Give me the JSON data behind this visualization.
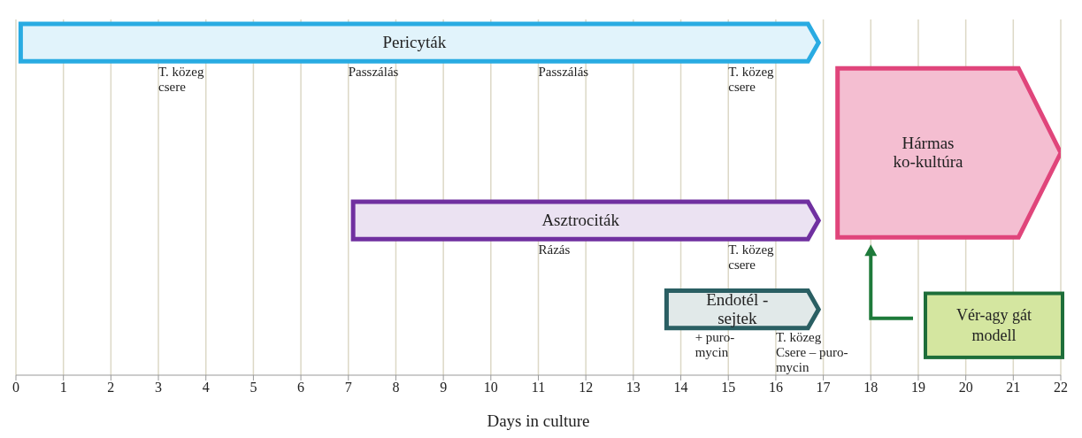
{
  "chart_data": {
    "type": "bar",
    "orientation": "horizontal",
    "categories": [
      "Pericyták",
      "Hármas ko-kultúra",
      "Asztrociták",
      "Endotél - sejtek"
    ],
    "base": [
      0.1,
      17.3,
      7.1,
      13.7
    ],
    "values": [
      16.8,
      4.7,
      9.8,
      3.2
    ],
    "colors": [
      "#29abe2",
      "#e0457b",
      "#7030a0",
      "#2a5f63"
    ],
    "xlabel": "Days in culture",
    "xlim": [
      0,
      22
    ],
    "xticks": [
      0,
      1,
      2,
      3,
      4,
      5,
      6,
      7,
      8,
      9,
      10,
      11,
      12,
      13,
      14,
      15,
      16,
      17,
      18,
      19,
      20,
      21,
      22
    ],
    "grid": "x",
    "tick_labels": "x",
    "annotations": [
      {
        "text": "T. közeg\ncsere",
        "x": 3,
        "y": "Pericyták"
      },
      {
        "text": "Passzálás",
        "x": 7,
        "y": "Pericyták"
      },
      {
        "text": "Passzálás",
        "x": 11,
        "y": "Pericyták"
      },
      {
        "text": "T. közeg\ncsere",
        "x": 15,
        "y": "Pericyták"
      },
      {
        "text": "Rázás",
        "x": 11,
        "y": "Asztrociták"
      },
      {
        "text": "T. közeg\ncsere",
        "x": 15,
        "y": "Asztrociták"
      },
      "+ puro-\nmycin",
      "T. közeg\nCsere – puro-\nmycin",
      "Vér-agy gát modell"
    ]
  }
}
